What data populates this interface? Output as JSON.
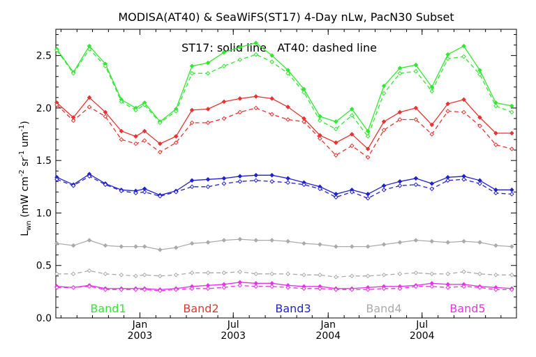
{
  "chart_data": {
    "type": "line",
    "title": "MODISA(AT40) & SeaWiFS(ST17) 4-Day nLw, PacN30 Subset",
    "annotation": "ST17: solid line   AT40: dashed line",
    "ylabel": "L_wn (mW cm^-2 sr^-1 um^-1)",
    "ylabel_parts": {
      "base": "L",
      "sub": "wn",
      "mid1": " (mW cm",
      "sup1": "-2",
      "mid2": " sr",
      "sup2": "-1",
      "mid3": " um",
      "sup3": "-1",
      "end": ")"
    },
    "ylim": [
      0,
      2.75
    ],
    "yticks": [
      "0.0",
      "0.5",
      "1.0",
      "1.5",
      "2.0",
      "2.5"
    ],
    "ytick_values": [
      0,
      0.5,
      1.0,
      1.5,
      2.0,
      2.5
    ],
    "xlim": [
      "2002-07-22",
      "2004-12-31"
    ],
    "xticks": [
      {
        "date": "2003-01-01",
        "month": "Jan",
        "year": "2003"
      },
      {
        "date": "2003-07-01",
        "month": "Jul",
        "year": "2003"
      },
      {
        "date": "2004-01-01",
        "month": "Jan",
        "year": "2004"
      },
      {
        "date": "2004-07-01",
        "month": "Jul",
        "year": "2004"
      }
    ],
    "x": [
      "2002-07-24",
      "2002-08-25",
      "2002-09-25",
      "2002-10-26",
      "2002-11-26",
      "2002-12-24",
      "2003-01-10",
      "2003-02-09",
      "2003-03-12",
      "2003-04-12",
      "2003-05-13",
      "2003-06-13",
      "2003-07-14",
      "2003-08-14",
      "2003-09-14",
      "2003-10-15",
      "2003-11-15",
      "2003-12-16",
      "2004-01-16",
      "2004-02-16",
      "2004-03-18",
      "2004-04-18",
      "2004-05-19",
      "2004-06-19",
      "2004-07-20",
      "2004-08-20",
      "2004-09-20",
      "2004-10-21",
      "2004-11-21",
      "2004-12-22"
    ],
    "series": [
      {
        "name": "Band1",
        "color": "#33e633",
        "solid": [
          2.56,
          2.34,
          2.59,
          2.42,
          2.08,
          2.0,
          2.05,
          1.87,
          1.99,
          2.4,
          2.43,
          2.53,
          2.58,
          2.62,
          2.5,
          2.36,
          2.18,
          1.92,
          1.87,
          1.99,
          1.78,
          2.21,
          2.38,
          2.41,
          2.2,
          2.51,
          2.59,
          2.36,
          2.05,
          2.02
        ],
        "dashed": [
          2.55,
          2.33,
          2.56,
          2.4,
          2.06,
          1.98,
          2.03,
          1.86,
          1.97,
          2.33,
          2.33,
          2.4,
          2.46,
          2.51,
          2.44,
          2.33,
          2.15,
          1.88,
          1.8,
          1.93,
          1.73,
          2.14,
          2.33,
          2.35,
          2.16,
          2.47,
          2.49,
          2.32,
          2.02,
          1.96
        ]
      },
      {
        "name": "Band2",
        "color": "#e63333",
        "solid": [
          2.05,
          1.91,
          2.1,
          1.96,
          1.78,
          1.73,
          1.78,
          1.66,
          1.73,
          1.98,
          1.99,
          2.06,
          2.09,
          2.11,
          2.09,
          2.01,
          1.9,
          1.74,
          1.67,
          1.75,
          1.61,
          1.87,
          1.96,
          2.0,
          1.84,
          2.04,
          2.08,
          1.91,
          1.76,
          1.76
        ],
        "dashed": [
          2.03,
          1.88,
          2.01,
          1.92,
          1.7,
          1.66,
          1.69,
          1.58,
          1.67,
          1.86,
          1.86,
          1.9,
          1.96,
          2.0,
          1.94,
          1.89,
          1.87,
          1.71,
          1.55,
          1.64,
          1.53,
          1.79,
          1.89,
          1.89,
          1.75,
          1.97,
          1.96,
          1.83,
          1.65,
          1.61
        ]
      },
      {
        "name": "Band3",
        "color": "#2222cc",
        "solid": [
          1.34,
          1.27,
          1.37,
          1.28,
          1.22,
          1.21,
          1.23,
          1.17,
          1.21,
          1.31,
          1.32,
          1.33,
          1.35,
          1.36,
          1.36,
          1.33,
          1.29,
          1.25,
          1.18,
          1.22,
          1.18,
          1.26,
          1.3,
          1.33,
          1.28,
          1.34,
          1.35,
          1.31,
          1.22,
          1.22
        ],
        "dashed": [
          1.32,
          1.26,
          1.35,
          1.27,
          1.21,
          1.19,
          1.2,
          1.16,
          1.2,
          1.25,
          1.25,
          1.28,
          1.3,
          1.31,
          1.3,
          1.29,
          1.27,
          1.23,
          1.15,
          1.2,
          1.14,
          1.22,
          1.26,
          1.27,
          1.23,
          1.31,
          1.32,
          1.28,
          1.19,
          1.18
        ]
      },
      {
        "name": "Band4",
        "color": "#aaaaaa",
        "solid": [
          0.71,
          0.69,
          0.74,
          0.69,
          0.68,
          0.68,
          0.68,
          0.65,
          0.67,
          0.71,
          0.72,
          0.74,
          0.75,
          0.74,
          0.74,
          0.73,
          0.71,
          0.7,
          0.68,
          0.68,
          0.68,
          0.7,
          0.72,
          0.74,
          0.73,
          0.72,
          0.73,
          0.72,
          0.69,
          0.68
        ],
        "dashed": [
          0.42,
          0.42,
          0.45,
          0.42,
          0.41,
          0.4,
          0.41,
          0.4,
          0.41,
          0.43,
          0.43,
          0.43,
          0.44,
          0.42,
          0.42,
          0.42,
          0.41,
          0.41,
          0.39,
          0.4,
          0.4,
          0.41,
          0.42,
          0.43,
          0.42,
          0.42,
          0.44,
          0.42,
          0.41,
          0.41
        ]
      },
      {
        "name": "Band5",
        "color": "#e633e6",
        "solid": [
          0.3,
          0.29,
          0.31,
          0.28,
          0.28,
          0.28,
          0.28,
          0.27,
          0.28,
          0.3,
          0.31,
          0.32,
          0.34,
          0.33,
          0.33,
          0.31,
          0.3,
          0.3,
          0.28,
          0.28,
          0.29,
          0.3,
          0.3,
          0.31,
          0.33,
          0.32,
          0.32,
          0.3,
          0.29,
          0.28
        ],
        "dashed": [
          0.29,
          0.29,
          0.3,
          0.27,
          0.27,
          0.27,
          0.27,
          0.26,
          0.27,
          0.28,
          0.28,
          0.29,
          0.31,
          0.3,
          0.3,
          0.29,
          0.28,
          0.28,
          0.27,
          0.27,
          0.27,
          0.28,
          0.28,
          0.3,
          0.3,
          0.29,
          0.3,
          0.29,
          0.27,
          0.27
        ]
      }
    ],
    "grid": false,
    "legend": "bottom, inside plot"
  }
}
